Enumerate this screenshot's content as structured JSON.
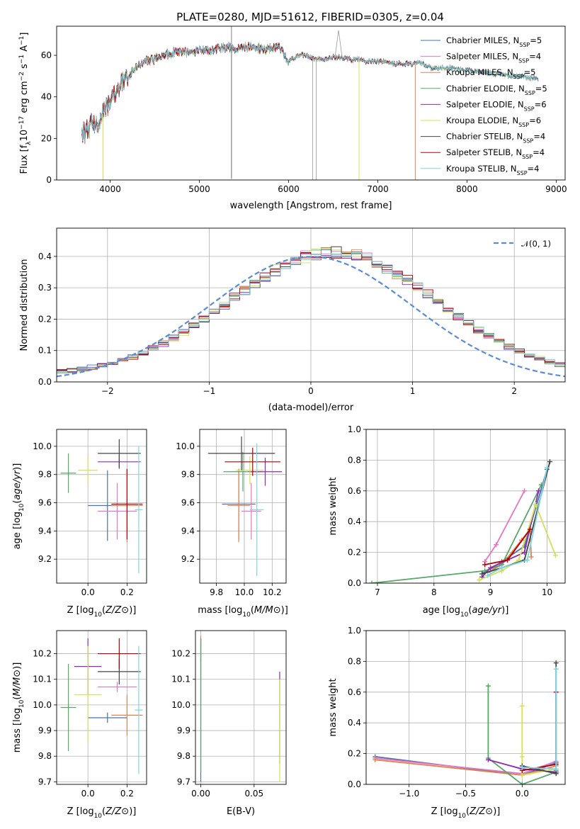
{
  "figure_title": "PLATE=0280, MJD=51612, FIBERID=0305, z=0.04",
  "models": [
    {
      "name": "Chabrier MILES, N",
      "sub": "SSP",
      "suffix": "=5",
      "color": "#4c72b0"
    },
    {
      "name": "Salpeter MILES, N",
      "sub": "SSP",
      "suffix": "=4",
      "color": "#e377c2"
    },
    {
      "name": "Kroupa MILES, N",
      "sub": "SSP",
      "suffix": "=5",
      "color": "#dd8452"
    },
    {
      "name": "Chabrier ELODIE, N",
      "sub": "SSP",
      "suffix": "=5",
      "color": "#55a868"
    },
    {
      "name": "Salpeter ELODIE, N",
      "sub": "SSP",
      "suffix": "=6",
      "color": "#8e2bb5"
    },
    {
      "name": "Kroupa ELODIE, N",
      "sub": "SSP",
      "suffix": "=6",
      "color": "#d4e157"
    },
    {
      "name": "Chabrier STELIB, N",
      "sub": "SSP",
      "suffix": "=4",
      "color": "#444444"
    },
    {
      "name": "Salpeter STELIB, N",
      "sub": "SSP",
      "suffix": "=4",
      "color": "#b30000"
    },
    {
      "name": "Kroupa STELIB, N",
      "sub": "SSP",
      "suffix": "=4",
      "color": "#7fd6e3"
    }
  ],
  "chart_data": [
    {
      "id": "spectrum",
      "type": "line",
      "xlabel": "wavelength [Angstrom, rest frame]",
      "ylabel_parts": [
        "Flux [f",
        "λ",
        "10",
        "−17",
        " erg cm",
        "−2",
        " s",
        "−1",
        " A",
        "−1",
        "]"
      ],
      "xlim": [
        3400,
        9100
      ],
      "ylim": [
        0,
        74
      ],
      "xticks": [
        4000,
        5000,
        6000,
        7000,
        8000,
        9000
      ],
      "yticks": [
        0,
        20,
        40,
        60
      ],
      "x": [
        3680,
        3750,
        3800,
        3850,
        3900,
        3950,
        4000,
        4100,
        4200,
        4300,
        4400,
        4500,
        4600,
        4700,
        4800,
        4900,
        5000,
        5100,
        5200,
        5300,
        5400,
        5500,
        5600,
        5700,
        5800,
        5900,
        6000,
        6100,
        6200,
        6300,
        6400,
        6500,
        6600,
        6700,
        6800,
        6900,
        7000,
        7100,
        7200,
        7300,
        7400,
        7500,
        7600,
        7700,
        7800,
        7900,
        8000,
        8100,
        8200,
        8300,
        8400,
        8500,
        8600,
        8700,
        8800
      ],
      "y": [
        22,
        24,
        28,
        26,
        30,
        34,
        38,
        45,
        50,
        54,
        57,
        58,
        60,
        61,
        62,
        61,
        63,
        62,
        63,
        64,
        63,
        64,
        64,
        63,
        63,
        64,
        57,
        60,
        60,
        58,
        58,
        59,
        59,
        58,
        58,
        57,
        57,
        57,
        56,
        56,
        56,
        56,
        54,
        54,
        54,
        53,
        53,
        52,
        52,
        51,
        51,
        50,
        50,
        49,
        49
      ],
      "outliers": [
        {
          "x": 3920,
          "y": 0,
          "color": "#d4e157"
        },
        {
          "x": 5360,
          "y": 1,
          "color": "#888888"
        },
        {
          "x": 6270,
          "y": 0,
          "color": "#aaaaaa"
        },
        {
          "x": 6310,
          "y": 0,
          "color": "#aaaaaa"
        },
        {
          "x": 6790,
          "y": 0,
          "color": "#d4e157"
        },
        {
          "x": 7420,
          "y": 0,
          "color": "#dd8452"
        }
      ],
      "spike": {
        "x": 6560,
        "y": 72
      }
    },
    {
      "id": "residuals",
      "type": "line",
      "xlabel": "(data-model)/error",
      "ylabel": "Normed distribution",
      "xlim": [
        -2.5,
        2.5
      ],
      "ylim": [
        0,
        0.49
      ],
      "xticks": [
        -2,
        -1,
        0,
        1,
        2
      ],
      "yticks": [
        0.0,
        0.1,
        0.2,
        0.3,
        0.4
      ],
      "legend": "𝒩(0, 1)",
      "legend_position": "top-right",
      "bin_width": 0.1
    },
    {
      "id": "age_vs_Z",
      "type": "scatter",
      "xlabel": "Z [log10(Z/Z⊙)]",
      "ylabel": "age  [log10(age/yr)]",
      "xlim": [
        -0.16,
        0.3
      ],
      "ylim": [
        9.03,
        10.12
      ],
      "xticks": [
        0.0,
        0.2
      ],
      "xtick_labels": [
        "0.0",
        "0.2"
      ],
      "yticks": [
        9.2,
        9.4,
        9.6,
        9.8,
        10.0
      ],
      "points": [
        {
          "x": 0.1,
          "y": 9.58,
          "xe": 0.1,
          "ye": 0.25
        },
        {
          "x": 0.15,
          "y": 9.54,
          "xe": 0.1,
          "ye": 0.2
        },
        {
          "x": 0.2,
          "y": 9.58,
          "xe": 0.08,
          "ye": 0.26
        },
        {
          "x": -0.1,
          "y": 9.81,
          "xe": 0.04,
          "ye": 0.14
        },
        {
          "x": 0.16,
          "y": 9.89,
          "xe": 0.11,
          "ye": 0.05
        },
        {
          "x": 0.0,
          "y": 9.83,
          "xe": 0.05,
          "ye": 0.1
        },
        {
          "x": 0.16,
          "y": 9.95,
          "xe": 0.11,
          "ye": 0.1
        },
        {
          "x": 0.2,
          "y": 9.59,
          "xe": 0.08,
          "ye": 0.25
        },
        {
          "x": 0.26,
          "y": 9.55,
          "xe": 0.02,
          "ye": 0.45
        }
      ]
    },
    {
      "id": "age_vs_mass",
      "type": "scatter",
      "xlabel": "mass [log10(M/M⊙)]",
      "ylabel": "",
      "xlim": [
        9.68,
        10.3
      ],
      "ylim": [
        9.03,
        10.12
      ],
      "xticks": [
        9.8,
        10.0,
        10.2
      ],
      "xtick_labels": [
        "9.8",
        "10.0",
        "10.2"
      ],
      "yticks": [
        9.2,
        9.4,
        9.6,
        9.8,
        10.0
      ],
      "points": [
        {
          "x": 9.96,
          "y": 9.59,
          "xe": 0.12,
          "ye": 0.25
        },
        {
          "x": 10.05,
          "y": 9.54,
          "xe": 0.07,
          "ye": 0.2
        },
        {
          "x": 9.96,
          "y": 9.58,
          "xe": 0.08,
          "ye": 0.26
        },
        {
          "x": 9.99,
          "y": 9.82,
          "xe": 0.14,
          "ye": 0.14
        },
        {
          "x": 10.15,
          "y": 9.82,
          "xe": 0.12,
          "ye": 0.1
        },
        {
          "x": 10.04,
          "y": 9.83,
          "xe": 0.1,
          "ye": 0.1
        },
        {
          "x": 9.98,
          "y": 9.95,
          "xe": 0.24,
          "ye": 0.12
        },
        {
          "x": 10.06,
          "y": 9.89,
          "xe": 0.2,
          "ye": 0.1
        },
        {
          "x": 10.09,
          "y": 9.55,
          "xe": 0.05,
          "ye": 0.47
        }
      ]
    },
    {
      "id": "mass_weight_vs_age",
      "type": "line",
      "xlabel": "age  [log10(age/yr)]",
      "ylabel": "mass weight",
      "xlim": [
        6.8,
        10.32
      ],
      "ylim": [
        0,
        1
      ],
      "xticks": [
        7,
        8,
        9,
        10
      ],
      "yticks": [
        0.0,
        0.2,
        0.4,
        0.6,
        0.8,
        1.0
      ],
      "series": [
        {
          "x": [
            8.9,
            9.2,
            9.6,
            10.0
          ],
          "y": [
            0.07,
            0.14,
            0.24,
            0.74
          ]
        },
        {
          "x": [
            8.9,
            9.1,
            9.6
          ],
          "y": [
            0.14,
            0.25,
            0.6
          ]
        },
        {
          "x": [
            8.95,
            9.2,
            9.55,
            9.7,
            9.72
          ],
          "y": [
            0.07,
            0.12,
            0.28,
            0.35,
            0.17
          ]
        },
        {
          "x": [
            6.9,
            8.9,
            9.2,
            9.9
          ],
          "y": [
            0.0,
            0.08,
            0.12,
            0.64
          ]
        },
        {
          "x": [
            8.85,
            9.0,
            9.6,
            9.85
          ],
          "y": [
            0.04,
            0.1,
            0.2,
            0.6
          ]
        },
        {
          "x": [
            8.8,
            9.2,
            9.5,
            9.8,
            10.15
          ],
          "y": [
            0.02,
            0.08,
            0.15,
            0.51,
            0.18
          ]
        },
        {
          "x": [
            8.85,
            9.2,
            9.6,
            10.05
          ],
          "y": [
            0.06,
            0.1,
            0.15,
            0.79
          ]
        },
        {
          "x": [
            8.9,
            9.3,
            9.7
          ],
          "y": [
            0.12,
            0.15,
            0.35
          ]
        },
        {
          "x": [
            8.95,
            9.2,
            9.65,
            10.0
          ],
          "y": [
            0.05,
            0.1,
            0.15,
            0.75
          ]
        }
      ]
    },
    {
      "id": "mass_vs_Z",
      "type": "scatter",
      "xlabel": "Z [log10(Z/Z⊙)]",
      "ylabel": "mass [log10(M/M⊙)]",
      "xlim": [
        -0.16,
        0.3
      ],
      "ylim": [
        9.69,
        10.29
      ],
      "xticks": [
        0.0,
        0.2
      ],
      "xtick_labels": [
        "0.0",
        "0.2"
      ],
      "yticks": [
        9.7,
        9.8,
        9.9,
        10.0,
        10.1,
        10.2
      ],
      "points": [
        {
          "x": 0.1,
          "y": 9.95,
          "xe": 0.1,
          "ye": 0.02
        },
        {
          "x": 0.15,
          "y": 10.07,
          "xe": 0.1,
          "ye": 0.02
        },
        {
          "x": 0.2,
          "y": 9.96,
          "xe": 0.08,
          "ye": 0.08
        },
        {
          "x": -0.1,
          "y": 9.99,
          "xe": 0.04,
          "ye": 0.17
        },
        {
          "x": 0.0,
          "y": 10.15,
          "xe": 0.07,
          "ye": 0.11
        },
        {
          "x": 0.0,
          "y": 10.04,
          "xe": 0.07,
          "ye": 0.19
        },
        {
          "x": 0.16,
          "y": 10.13,
          "xe": 0.11,
          "ye": 0.05
        },
        {
          "x": 0.16,
          "y": 10.2,
          "xe": 0.11,
          "ye": 0.06
        },
        {
          "x": 0.26,
          "y": 9.98,
          "xe": 0.02,
          "ye": 0.25
        }
      ]
    },
    {
      "id": "mass_vs_EBV",
      "type": "scatter",
      "xlabel": "E(B-V)",
      "ylabel": "",
      "xlim": [
        -0.005,
        0.08
      ],
      "ylim": [
        9.69,
        10.29
      ],
      "xticks": [
        0.0,
        0.05
      ],
      "xtick_labels": [
        "0.00",
        "0.05"
      ],
      "yticks": [
        9.7,
        9.8,
        9.9,
        10.0,
        10.1,
        10.2
      ],
      "points": [
        {
          "x": 0.0,
          "y": 9.98,
          "ye": 0.28
        },
        {
          "x": 0.0,
          "y": 10.18,
          "ye": 0.08
        },
        {
          "x": 0.0,
          "y": 10.22,
          "ye": 0.05
        },
        {
          "x": 0.0,
          "y": 10.0,
          "ye": 0.26
        },
        {
          "x": 0.074,
          "y": 9.95,
          "ye": 0.18
        },
        {
          "x": 0.074,
          "y": 9.9,
          "ye": 0.2
        }
      ]
    },
    {
      "id": "mass_weight_vs_Z",
      "type": "line",
      "xlabel": "Z [log10(Z/Z⊙)]",
      "ylabel": "mass weight",
      "xlim": [
        -1.38,
        0.38
      ],
      "ylim": [
        0,
        1
      ],
      "xticks": [
        -1.0,
        -0.5,
        0.0
      ],
      "xtick_labels": [
        "−1.0",
        "−0.5",
        "0.0"
      ],
      "yticks": [
        0.0,
        0.2,
        0.4,
        0.6,
        0.8,
        1.0
      ],
      "series": [
        {
          "x": [
            -1.3,
            0.0,
            0.3
          ],
          "y": [
            0.18,
            0.06,
            0.14
          ]
        },
        {
          "x": [
            -1.3,
            0.0,
            0.3
          ],
          "y": [
            0.17,
            0.07,
            0.15
          ]
        },
        {
          "x": [
            -1.3,
            0.0,
            0.3
          ],
          "y": [
            0.16,
            0.06,
            0.12
          ]
        },
        {
          "x": [
            -0.3,
            -0.3,
            0.0,
            0.3,
            0.3
          ],
          "y": [
            0.64,
            0.17,
            0.0,
            0.08,
            0.09
          ]
        },
        {
          "x": [
            -0.3,
            0.0,
            0.3
          ],
          "y": [
            0.16,
            0.1,
            0.08
          ]
        },
        {
          "x": [
            0.0,
            0.0,
            0.0,
            0.3
          ],
          "y": [
            0.51,
            0.18,
            0.06,
            0.1
          ]
        },
        {
          "x": [
            0.0,
            0.3,
            0.3
          ],
          "y": [
            0.12,
            0.07,
            0.79
          ]
        },
        {
          "x": [
            0.0,
            0.3,
            0.3
          ],
          "y": [
            0.09,
            0.13,
            0.6
          ]
        },
        {
          "x": [
            0.0,
            0.3,
            0.3
          ],
          "y": [
            0.11,
            0.1,
            0.75
          ]
        }
      ]
    }
  ]
}
